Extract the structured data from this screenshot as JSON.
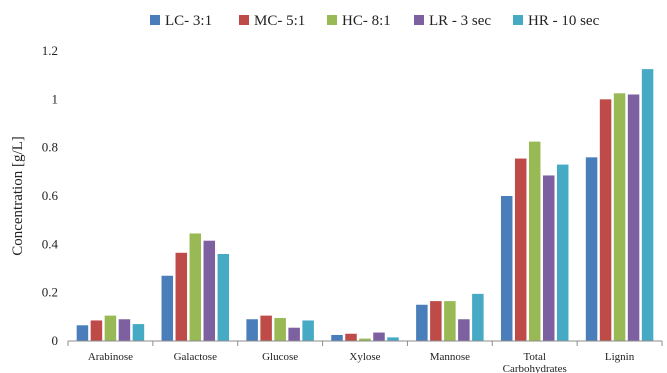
{
  "chart_data": {
    "type": "bar",
    "title": "",
    "xlabel": "",
    "ylabel": "Concentration [g/L]",
    "ylim": [
      0,
      1.2
    ],
    "yticks": [
      "0",
      "0.2",
      "0.4",
      "0.6",
      "0.8",
      "1",
      "1.2"
    ],
    "categories": [
      [
        "Arabinose"
      ],
      [
        "Galactose"
      ],
      [
        "Glucose"
      ],
      [
        "Xylose"
      ],
      [
        "Mannose"
      ],
      [
        "Total",
        "Carbohydrates"
      ],
      [
        "Lignin"
      ]
    ],
    "legend_position": "top",
    "grid": false,
    "series": [
      {
        "name": "LC- 3:1",
        "color": "#4a7ebb",
        "values": [
          0.065,
          0.27,
          0.09,
          0.025,
          0.15,
          0.6,
          0.76
        ]
      },
      {
        "name": "MC- 5:1",
        "color": "#be4b48",
        "values": [
          0.085,
          0.365,
          0.105,
          0.03,
          0.165,
          0.755,
          1.0
        ]
      },
      {
        "name": "HC- 8:1",
        "color": "#98b954",
        "values": [
          0.105,
          0.445,
          0.095,
          0.01,
          0.165,
          0.825,
          1.025
        ]
      },
      {
        "name": "LR - 3 sec",
        "color": "#7d60a0",
        "values": [
          0.09,
          0.415,
          0.055,
          0.035,
          0.09,
          0.685,
          1.02
        ]
      },
      {
        "name": "HR - 10 sec",
        "color": "#46aac5",
        "values": [
          0.07,
          0.36,
          0.085,
          0.015,
          0.195,
          0.73,
          1.125
        ]
      }
    ]
  }
}
